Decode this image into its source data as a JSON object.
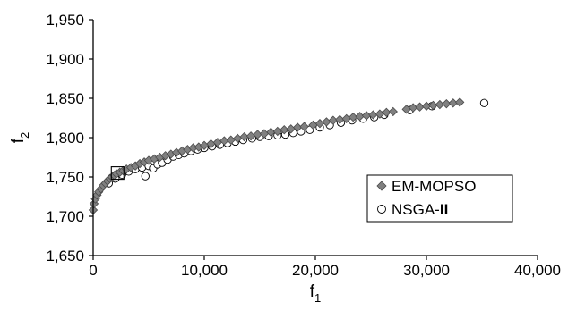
{
  "chart_data": {
    "type": "scatter",
    "xlabel": "f",
    "xlabel_subscript": "1",
    "ylabel": "f",
    "ylabel_subscript": "2",
    "xlim": [
      0,
      40000
    ],
    "ylim": [
      1650,
      1950
    ],
    "x_ticks": [
      0,
      10000,
      20000,
      30000,
      40000
    ],
    "x_tick_labels": [
      "0",
      "10,000",
      "20,000",
      "30,000",
      "40,000"
    ],
    "y_ticks": [
      1650,
      1700,
      1750,
      1800,
      1850,
      1900,
      1950
    ],
    "y_tick_labels": [
      "1,650",
      "1,700",
      "1,750",
      "1,800",
      "1,850",
      "1,900",
      "1,950"
    ],
    "grid": false,
    "legend_position": "lower-right",
    "highlight_box": {
      "x": 2200,
      "y": 1755
    },
    "series": [
      {
        "name_prefix": "EM-MOPSO",
        "name_suffix": "",
        "marker": "diamond",
        "color": "#808080",
        "points": [
          [
            0,
            1708
          ],
          [
            80,
            1716
          ],
          [
            200,
            1722
          ],
          [
            350,
            1727
          ],
          [
            500,
            1731
          ],
          [
            700,
            1735
          ],
          [
            900,
            1739
          ],
          [
            1100,
            1742
          ],
          [
            1300,
            1745
          ],
          [
            1500,
            1748
          ],
          [
            1700,
            1750
          ],
          [
            1900,
            1752
          ],
          [
            2100,
            1754
          ],
          [
            2400,
            1756
          ],
          [
            2700,
            1758
          ],
          [
            3000,
            1760
          ],
          [
            3400,
            1762
          ],
          [
            3800,
            1764
          ],
          [
            4200,
            1767
          ],
          [
            4600,
            1769
          ],
          [
            5000,
            1771
          ],
          [
            5500,
            1773
          ],
          [
            6000,
            1775
          ],
          [
            6500,
            1777
          ],
          [
            7000,
            1779
          ],
          [
            7500,
            1781
          ],
          [
            8000,
            1783
          ],
          [
            8500,
            1785
          ],
          [
            9000,
            1787
          ],
          [
            9500,
            1788
          ],
          [
            10000,
            1790
          ],
          [
            10600,
            1792
          ],
          [
            11200,
            1794
          ],
          [
            11800,
            1796
          ],
          [
            12400,
            1797
          ],
          [
            13000,
            1799
          ],
          [
            13600,
            1801
          ],
          [
            14200,
            1802
          ],
          [
            14800,
            1804
          ],
          [
            15400,
            1805
          ],
          [
            16000,
            1807
          ],
          [
            16600,
            1808
          ],
          [
            17200,
            1810
          ],
          [
            17800,
            1811
          ],
          [
            18400,
            1813
          ],
          [
            19000,
            1814
          ],
          [
            19800,
            1816
          ],
          [
            20400,
            1818
          ],
          [
            21000,
            1820
          ],
          [
            21600,
            1822
          ],
          [
            22200,
            1823
          ],
          [
            22800,
            1824
          ],
          [
            23400,
            1826
          ],
          [
            24000,
            1827
          ],
          [
            24600,
            1828
          ],
          [
            25200,
            1829
          ],
          [
            25800,
            1830
          ],
          [
            26400,
            1832
          ],
          [
            27000,
            1833
          ],
          [
            28200,
            1836
          ],
          [
            28800,
            1838
          ],
          [
            29400,
            1839
          ],
          [
            30000,
            1840
          ],
          [
            30600,
            1841
          ],
          [
            31200,
            1842
          ],
          [
            31800,
            1843
          ],
          [
            32400,
            1844
          ],
          [
            33000,
            1845
          ]
        ]
      },
      {
        "name_prefix": "NSGA-",
        "name_suffix": "II",
        "marker": "circle",
        "color": "#ffffff",
        "points": [
          [
            1400,
            1742
          ],
          [
            2000,
            1748
          ],
          [
            2600,
            1753
          ],
          [
            3200,
            1757
          ],
          [
            3800,
            1760
          ],
          [
            4400,
            1762
          ],
          [
            4700,
            1751
          ],
          [
            5000,
            1764
          ],
          [
            5400,
            1761
          ],
          [
            5800,
            1766
          ],
          [
            6200,
            1768
          ],
          [
            6700,
            1772
          ],
          [
            7200,
            1776
          ],
          [
            7700,
            1778
          ],
          [
            8200,
            1780
          ],
          [
            8800,
            1783
          ],
          [
            9400,
            1785
          ],
          [
            10000,
            1787
          ],
          [
            10700,
            1789
          ],
          [
            11400,
            1791
          ],
          [
            12100,
            1793
          ],
          [
            12800,
            1795
          ],
          [
            13500,
            1797
          ],
          [
            14300,
            1799
          ],
          [
            15000,
            1801
          ],
          [
            15800,
            1802
          ],
          [
            16600,
            1803
          ],
          [
            17300,
            1804
          ],
          [
            18000,
            1806
          ],
          [
            18700,
            1808
          ],
          [
            19500,
            1810
          ],
          [
            20400,
            1813
          ],
          [
            21300,
            1816
          ],
          [
            22300,
            1819
          ],
          [
            23300,
            1822
          ],
          [
            24300,
            1824
          ],
          [
            25300,
            1826
          ],
          [
            26200,
            1829
          ],
          [
            28500,
            1835
          ],
          [
            30500,
            1840
          ],
          [
            35200,
            1844
          ]
        ]
      }
    ]
  }
}
